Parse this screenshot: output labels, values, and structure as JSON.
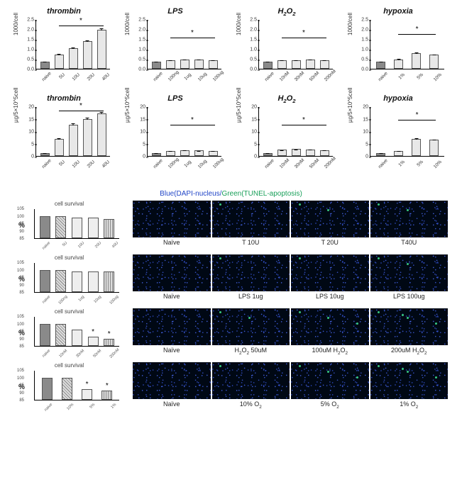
{
  "colors": {
    "bg": "#ffffff",
    "axis": "#000000",
    "bar_default": "#E8E8E8",
    "bar_naive": "#8a8a8a",
    "bar_border": "#555555",
    "micro_bg": "#000814",
    "speck_blue": "#3c5adc",
    "speck_green": "#3cdc8c",
    "legend_blue": "#2145c7",
    "legend_green": "#1aa05a"
  },
  "top_rows": [
    {
      "ylabel": "1000/cell",
      "ymax": 2.5,
      "ytick_step": 0.5,
      "panels": [
        {
          "title": "thrombin",
          "cats": [
            "naive",
            "5U",
            "10U",
            "20U",
            "40U"
          ],
          "vals": [
            0.36,
            0.72,
            1.02,
            1.4,
            1.98
          ],
          "errs": [
            0.04,
            0.05,
            0.1,
            0.06,
            0.08
          ],
          "sig": {
            "from": 1,
            "to": 4,
            "y": 2.2
          },
          "ymax_override": null
        },
        {
          "title": "LPS",
          "cats": [
            "naive",
            "100ng",
            "1ug",
            "10ug",
            "100ug"
          ],
          "vals": [
            0.36,
            0.44,
            0.46,
            0.46,
            0.44
          ],
          "errs": [
            0.03,
            0.03,
            0.03,
            0.03,
            0.03
          ],
          "sig": {
            "from": 1,
            "to": 4,
            "y": 1.6
          }
        },
        {
          "title": "H2O2",
          "cats": [
            "naive",
            "10nM",
            "30nM",
            "50nM",
            "200nM"
          ],
          "vals": [
            0.36,
            0.42,
            0.44,
            0.46,
            0.44
          ],
          "errs": [
            0.03,
            0.03,
            0.03,
            0.03,
            0.03
          ],
          "sig": {
            "from": 1,
            "to": 4,
            "y": 1.6
          }
        },
        {
          "title": "hypoxia",
          "cats": [
            "naive",
            "1%",
            "5%",
            "10%"
          ],
          "vals": [
            0.36,
            0.48,
            0.78,
            0.7
          ],
          "errs": [
            0.03,
            0.04,
            0.08,
            0.05
          ],
          "sig": {
            "from": 1,
            "to": 3,
            "y": 1.8
          }
        }
      ]
    },
    {
      "ylabel": "µg/5×10^5cell",
      "ymax": 20,
      "ytick_step": 5,
      "panels": [
        {
          "title": "thrombin",
          "cats": [
            "naive",
            "5U",
            "10U",
            "20U",
            "40U"
          ],
          "vals": [
            1.2,
            7.0,
            12.5,
            15.0,
            17.2
          ],
          "errs": [
            0.3,
            0.5,
            0.8,
            0.6,
            0.7
          ],
          "sig": {
            "from": 1,
            "to": 4,
            "y": 18.5
          }
        },
        {
          "title": "LPS",
          "cats": [
            "naive",
            "100ng",
            "1ug",
            "10ug",
            "100ug"
          ],
          "vals": [
            1.2,
            2.0,
            2.3,
            2.2,
            2.0
          ],
          "errs": [
            0.2,
            0.2,
            0.2,
            0.2,
            0.2
          ],
          "sig": {
            "from": 1,
            "to": 4,
            "y": 13
          }
        },
        {
          "title": "H2O2",
          "cats": [
            "naive",
            "10nM",
            "30nM",
            "50nM",
            "200nM"
          ],
          "vals": [
            1.2,
            2.5,
            2.8,
            2.6,
            2.4
          ],
          "errs": [
            0.2,
            0.2,
            0.2,
            0.2,
            0.2
          ],
          "sig": {
            "from": 1,
            "to": 4,
            "y": 13
          }
        },
        {
          "title": "hypoxia",
          "cats": [
            "naive",
            "1%",
            "5%",
            "10%"
          ],
          "vals": [
            1.2,
            2.0,
            7.0,
            6.5
          ],
          "errs": [
            0.2,
            0.3,
            0.5,
            0.4
          ],
          "sig": {
            "from": 1,
            "to": 3,
            "y": 15
          }
        }
      ]
    }
  ],
  "legend": {
    "blue_text": "Blue(DAPI-nucleus/",
    "green_text": "Green(TUNEL-apoptosis)"
  },
  "bottom_rows": [
    {
      "chart": {
        "title": "cell survival",
        "ymax": 105,
        "yticks": [
          85,
          90,
          95,
          100,
          105
        ],
        "cats": [
          "naive",
          "5U",
          "10U",
          "20U",
          "40U"
        ],
        "vals": [
          100,
          100,
          99,
          99,
          98
        ],
        "patterns": [
          "naive",
          "hatch",
          "plain",
          "plain",
          "hatchv"
        ],
        "stars": []
      },
      "micros": [
        "Naïve",
        "T 10U",
        "T 20U",
        "T40U"
      ],
      "green": [
        0,
        1,
        2,
        2
      ]
    },
    {
      "chart": {
        "title": "cell survival",
        "ymax": 105,
        "yticks": [
          85,
          90,
          95,
          100,
          105
        ],
        "cats": [
          "naive",
          "100ng",
          "1ug",
          "10ug",
          "100ug"
        ],
        "vals": [
          100,
          100,
          99,
          99,
          99
        ],
        "patterns": [
          "naive",
          "hatch",
          "plain",
          "plain",
          "hatchv"
        ],
        "stars": []
      },
      "micros": [
        "Naïve",
        "LPS 1ug",
        "LPS 10ug",
        "LPS 100ug"
      ],
      "green": [
        0,
        1,
        1,
        2
      ]
    },
    {
      "chart": {
        "title": "cell survival",
        "ymax": 105,
        "yticks": [
          85,
          90,
          95,
          100,
          105
        ],
        "cats": [
          "naive",
          "10nM",
          "30nM",
          "50nM",
          "200nM"
        ],
        "vals": [
          100,
          100,
          96,
          91,
          90
        ],
        "patterns": [
          "naive",
          "hatch",
          "plain",
          "plain",
          "hatchv"
        ],
        "stars": [
          3,
          4
        ]
      },
      "micros": [
        "Naïve",
        "H2O2 50uM",
        "100uM H2O2",
        "200uM H2O2"
      ],
      "green": [
        0,
        2,
        3,
        4
      ]
    },
    {
      "chart": {
        "title": "cell survival",
        "ymax": 105,
        "yticks": [
          85,
          90,
          95,
          100,
          105
        ],
        "cats": [
          "naive",
          "10%",
          "5%",
          "1%"
        ],
        "vals": [
          100,
          100,
          92,
          91
        ],
        "patterns": [
          "naive",
          "hatch",
          "plain",
          "hatchv"
        ],
        "stars": [
          2,
          3
        ]
      },
      "micros": [
        "Naïve",
        "10% O2",
        "5% O2",
        "1% O2"
      ],
      "green": [
        0,
        1,
        3,
        4
      ]
    }
  ],
  "ylabel_bottom": "%"
}
